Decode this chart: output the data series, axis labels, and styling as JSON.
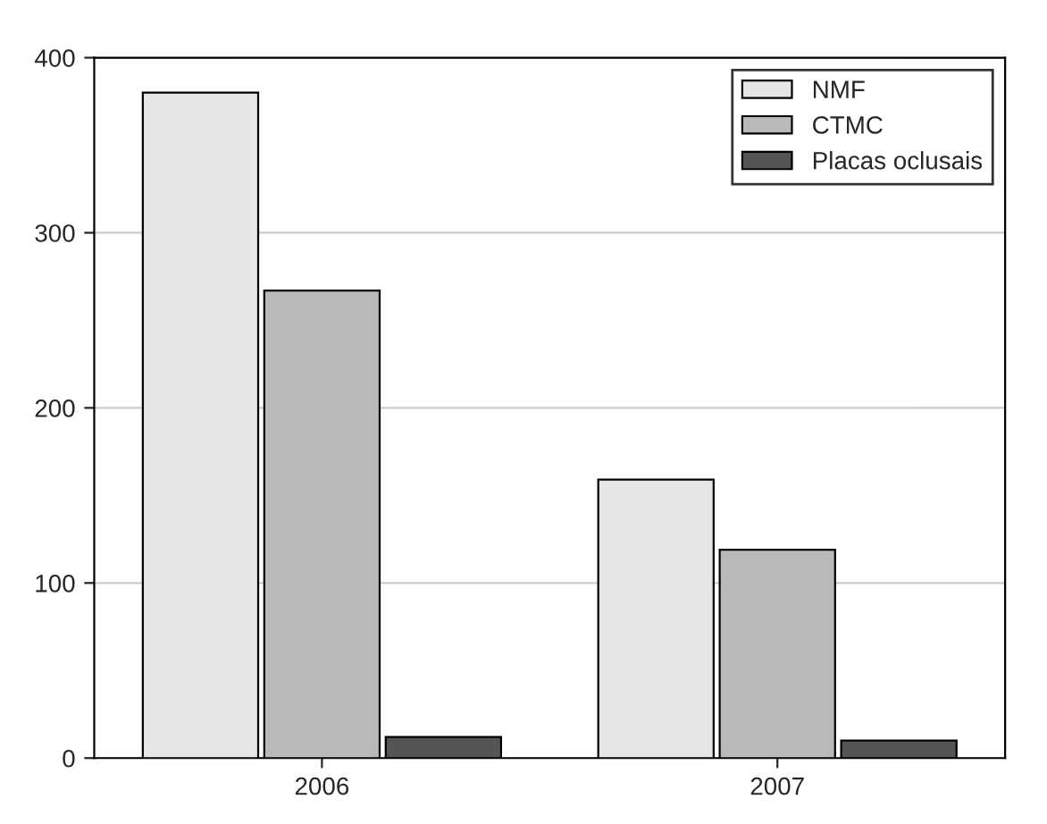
{
  "chart_data": {
    "type": "bar",
    "categories": [
      "2006",
      "2007"
    ],
    "series": [
      {
        "name": "NMF",
        "color": "#e6e6e6",
        "values": [
          380,
          159
        ]
      },
      {
        "name": "CTMC",
        "color": "#b9b9b9",
        "values": [
          267,
          119
        ]
      },
      {
        "name": "Placas oclusais",
        "color": "#555555",
        "values": [
          12,
          10
        ]
      }
    ],
    "ylim": [
      0,
      400
    ],
    "yticks": [
      0,
      100,
      200,
      300,
      400
    ],
    "grid": "y",
    "legend": "top right"
  }
}
